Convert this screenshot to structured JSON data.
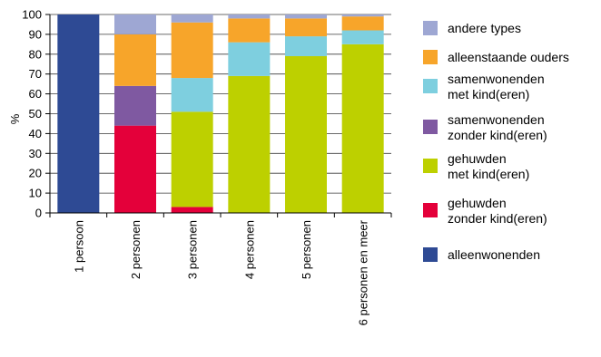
{
  "chart_data": {
    "type": "bar",
    "stacked": true,
    "ylabel": "%",
    "xlabel": "",
    "ylim": [
      0,
      100
    ],
    "yticks": [
      0,
      10,
      20,
      30,
      40,
      50,
      60,
      70,
      80,
      90,
      100
    ],
    "grid": true,
    "legend_position": "right",
    "categories": [
      "1 persoon",
      "2 personen",
      "3 personen",
      "4 personen",
      "5 personen",
      "6 personen en meer"
    ],
    "series": [
      {
        "name": "alleenwonenden",
        "color": "#2e4a94",
        "values": [
          100,
          0,
          0,
          0,
          0,
          0
        ]
      },
      {
        "name": "gehuwden zonder kind(eren)",
        "legend_lines": [
          "gehuwden",
          "zonder kind(eren)"
        ],
        "color": "#e4003a",
        "values": [
          0,
          44,
          3,
          0,
          0,
          0
        ]
      },
      {
        "name": "gehuwden met kind(eren)",
        "legend_lines": [
          "gehuwden",
          "met kind(eren)"
        ],
        "color": "#bdd000",
        "values": [
          0,
          0,
          48,
          69,
          79,
          85
        ]
      },
      {
        "name": "samenwonenden zonder kind(eren)",
        "legend_lines": [
          "samenwonenden",
          "zonder kind(eren)"
        ],
        "color": "#7f59a1",
        "values": [
          0,
          20,
          0,
          0,
          0,
          0
        ]
      },
      {
        "name": "samenwonenden met kind(eren)",
        "legend_lines": [
          "samenwonenden",
          "met kind(eren)"
        ],
        "color": "#7ecfdf",
        "values": [
          0,
          0,
          17,
          17,
          10,
          7
        ]
      },
      {
        "name": "alleenstaande ouders",
        "color": "#f7a52a",
        "values": [
          0,
          26,
          28,
          12,
          9,
          7
        ]
      },
      {
        "name": "andere types",
        "color": "#9ea7d3",
        "values": [
          0,
          10,
          4,
          2,
          2,
          1
        ]
      }
    ],
    "legend_order": [
      "andere types",
      "alleenstaande ouders",
      "samenwonenden met kind(eren)",
      "samenwonenden zonder kind(eren)",
      "gehuwden met kind(eren)",
      "gehuwden zonder kind(eren)",
      "alleenwonenden"
    ]
  }
}
